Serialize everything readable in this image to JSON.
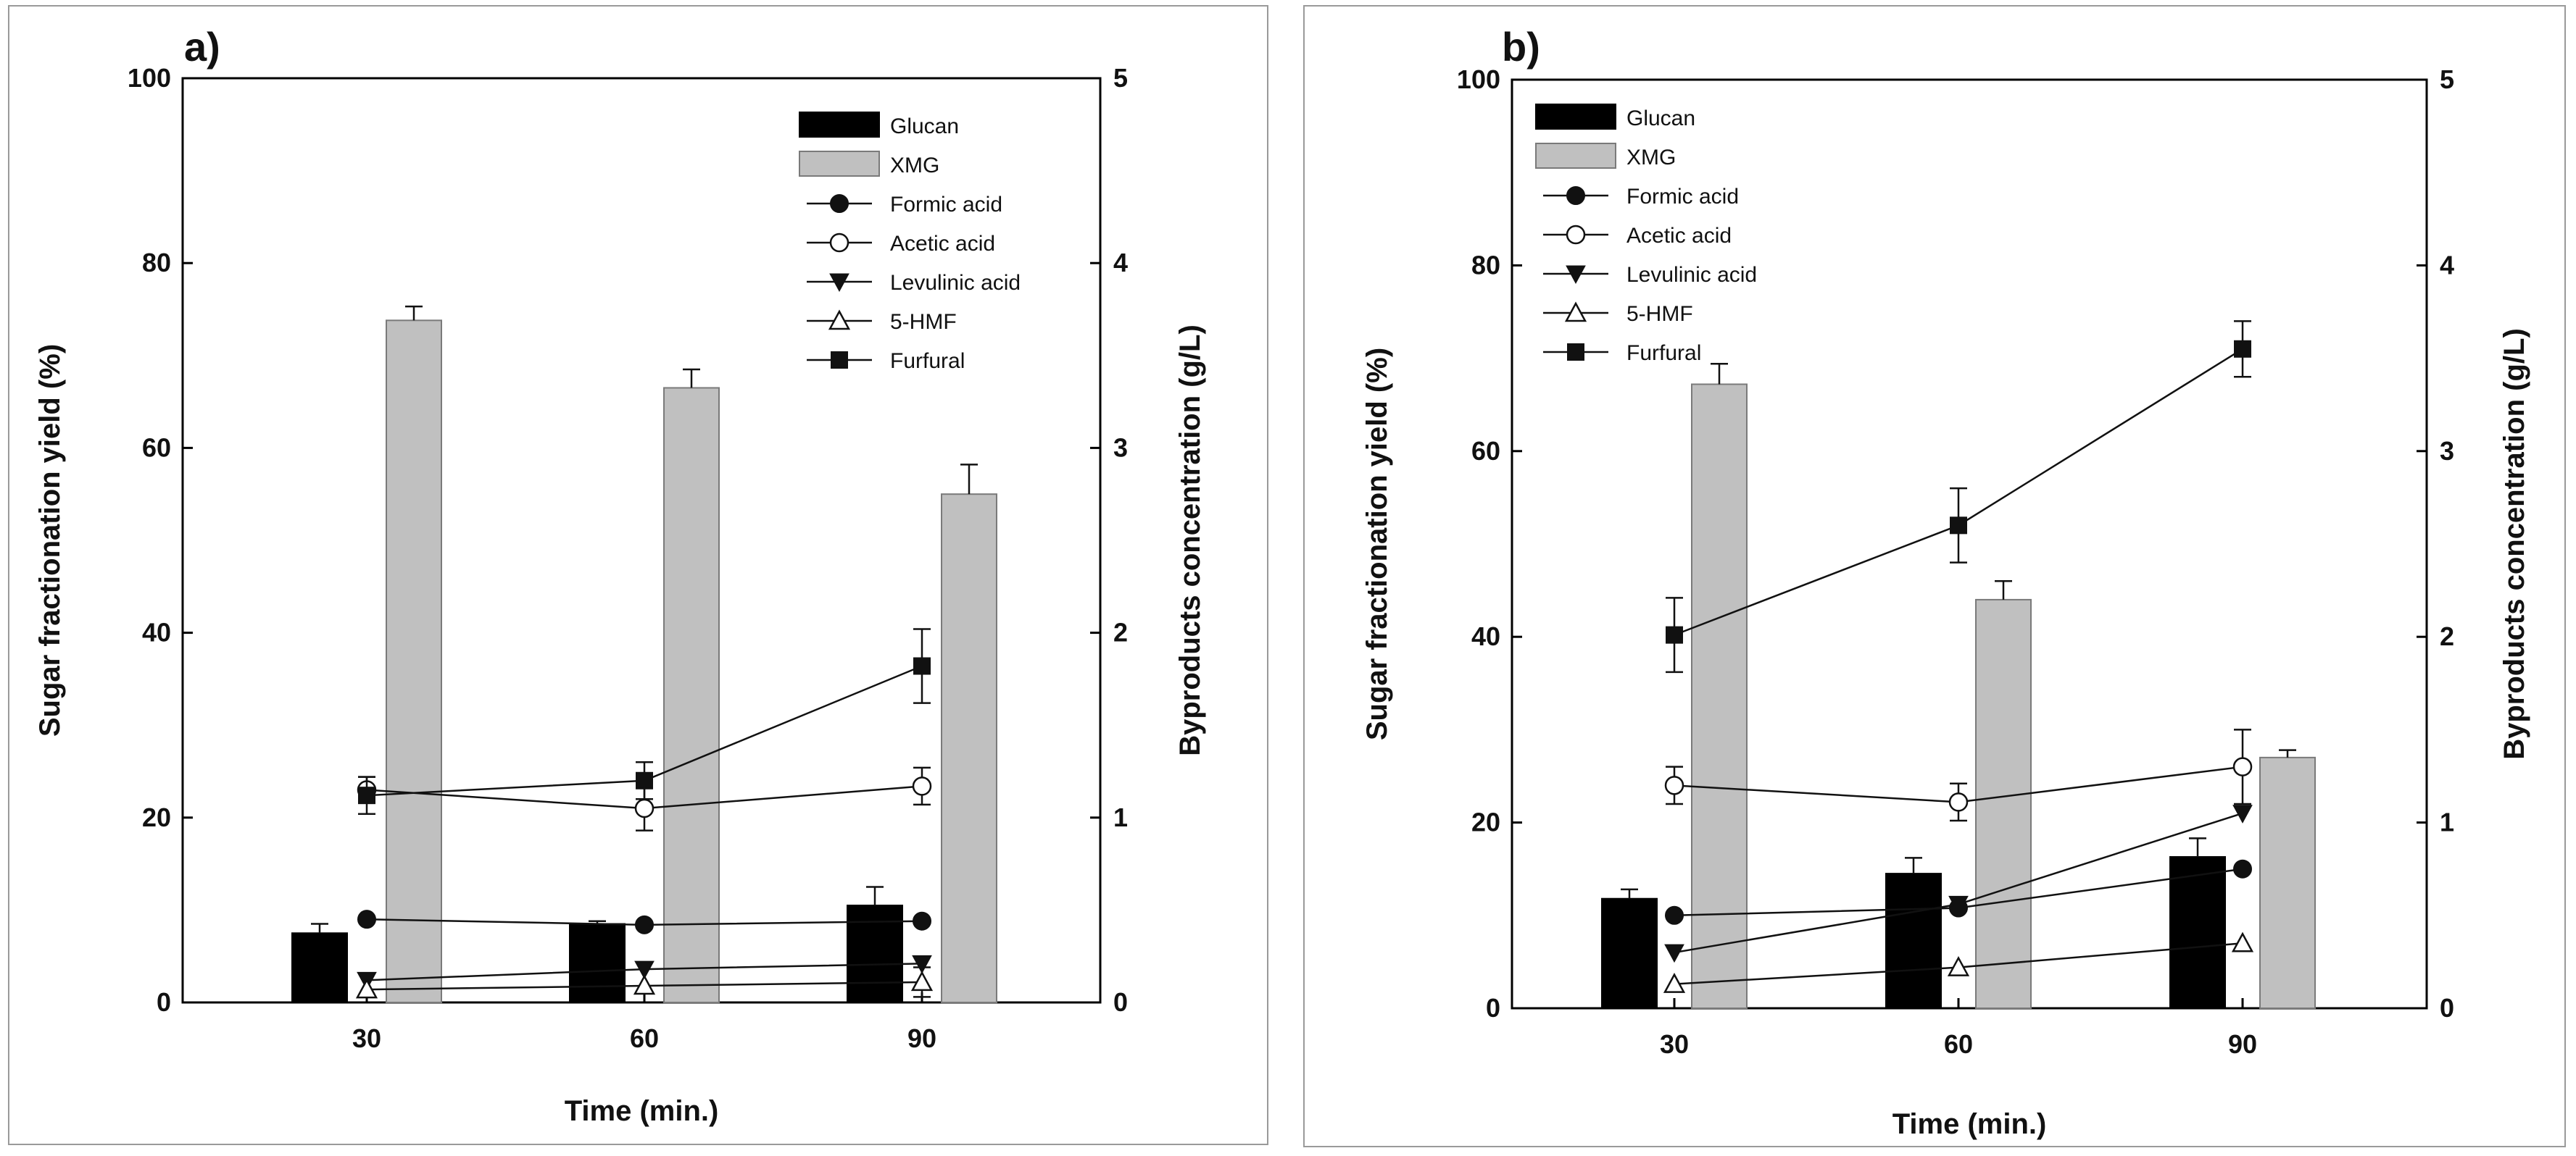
{
  "colors": {
    "glucan": "#000000",
    "xmg": "#c0c0c0",
    "xmg_edge": "#7a7a7a",
    "line": "#111111",
    "frame": "#000000",
    "border": "#9a9a9a"
  },
  "chart_data": [
    {
      "type": "bar",
      "panel_label": "a)",
      "xlabel": "Time (min.)",
      "ylabel": "Sugar fractionation yield (%)",
      "y2label": "Byproducts concentration (g/L)",
      "categories": [
        "30",
        "60",
        "90"
      ],
      "ylim": [
        0,
        100
      ],
      "y2lim": [
        0,
        5
      ],
      "yticks": [
        "0",
        "20",
        "40",
        "60",
        "80",
        "100"
      ],
      "y2ticks": [
        "0",
        "1",
        "2",
        "3",
        "4",
        "5"
      ],
      "bars": [
        {
          "name": "Glucan",
          "values": [
            7.5,
            8.5,
            10.5
          ],
          "errors": [
            1.0,
            0.3,
            2.0
          ]
        },
        {
          "name": "XMG",
          "values": [
            73.8,
            66.5,
            55.0
          ],
          "errors": [
            1.5,
            2.0,
            3.2
          ]
        }
      ],
      "lines": [
        {
          "name": "Formic acid",
          "marker": "circle-filled",
          "values": [
            0.45,
            0.42,
            0.44
          ],
          "errors": [
            0,
            0,
            0
          ]
        },
        {
          "name": "Acetic acid",
          "marker": "circle-open",
          "values": [
            1.15,
            1.05,
            1.17
          ],
          "errors": [
            0.07,
            0.12,
            0.1
          ]
        },
        {
          "name": "Levulinic acid",
          "marker": "triangle-down-filled",
          "values": [
            0.12,
            0.18,
            0.21
          ],
          "errors": [
            0,
            0,
            0
          ]
        },
        {
          "name": "5-HMF",
          "marker": "triangle-up-open",
          "values": [
            0.07,
            0.09,
            0.11
          ],
          "errors": [
            0,
            0,
            0.08
          ]
        },
        {
          "name": "Furfural",
          "marker": "square-filled",
          "values": [
            1.12,
            1.2,
            1.82
          ],
          "errors": [
            0.1,
            0.1,
            0.2
          ]
        }
      ]
    },
    {
      "type": "bar",
      "panel_label": "b)",
      "xlabel": "Time (min.)",
      "ylabel": "Sugar fractionation yield (%)",
      "y2label": "Byproducts concentration (g/L)",
      "categories": [
        "30",
        "60",
        "90"
      ],
      "ylim": [
        0,
        100
      ],
      "y2lim": [
        0,
        5
      ],
      "yticks": [
        "0",
        "20",
        "40",
        "60",
        "80",
        "100"
      ],
      "y2ticks": [
        "0",
        "1",
        "2",
        "3",
        "4",
        "5"
      ],
      "bars": [
        {
          "name": "Glucan",
          "values": [
            11.8,
            14.5,
            16.3
          ],
          "errors": [
            1.0,
            1.7,
            2.0
          ]
        },
        {
          "name": "XMG",
          "values": [
            67.2,
            44.0,
            27.0
          ],
          "errors": [
            2.2,
            2.0,
            0.8
          ]
        }
      ],
      "lines": [
        {
          "name": "Formic acid",
          "marker": "circle-filled",
          "values": [
            0.5,
            0.54,
            0.75
          ],
          "errors": [
            0,
            0,
            0
          ]
        },
        {
          "name": "Acetic acid",
          "marker": "circle-open",
          "values": [
            1.2,
            1.11,
            1.3
          ],
          "errors": [
            0.1,
            0.1,
            0.2
          ]
        },
        {
          "name": "Levulinic acid",
          "marker": "triangle-down-filled",
          "values": [
            0.3,
            0.56,
            1.05
          ],
          "errors": [
            0,
            0,
            0
          ]
        },
        {
          "name": "5-HMF",
          "marker": "triangle-up-open",
          "values": [
            0.13,
            0.22,
            0.35
          ],
          "errors": [
            0,
            0,
            0
          ]
        },
        {
          "name": "Furfural",
          "marker": "square-filled",
          "values": [
            2.01,
            2.6,
            3.55
          ],
          "errors": [
            0.2,
            0.2,
            0.15
          ]
        }
      ]
    }
  ]
}
